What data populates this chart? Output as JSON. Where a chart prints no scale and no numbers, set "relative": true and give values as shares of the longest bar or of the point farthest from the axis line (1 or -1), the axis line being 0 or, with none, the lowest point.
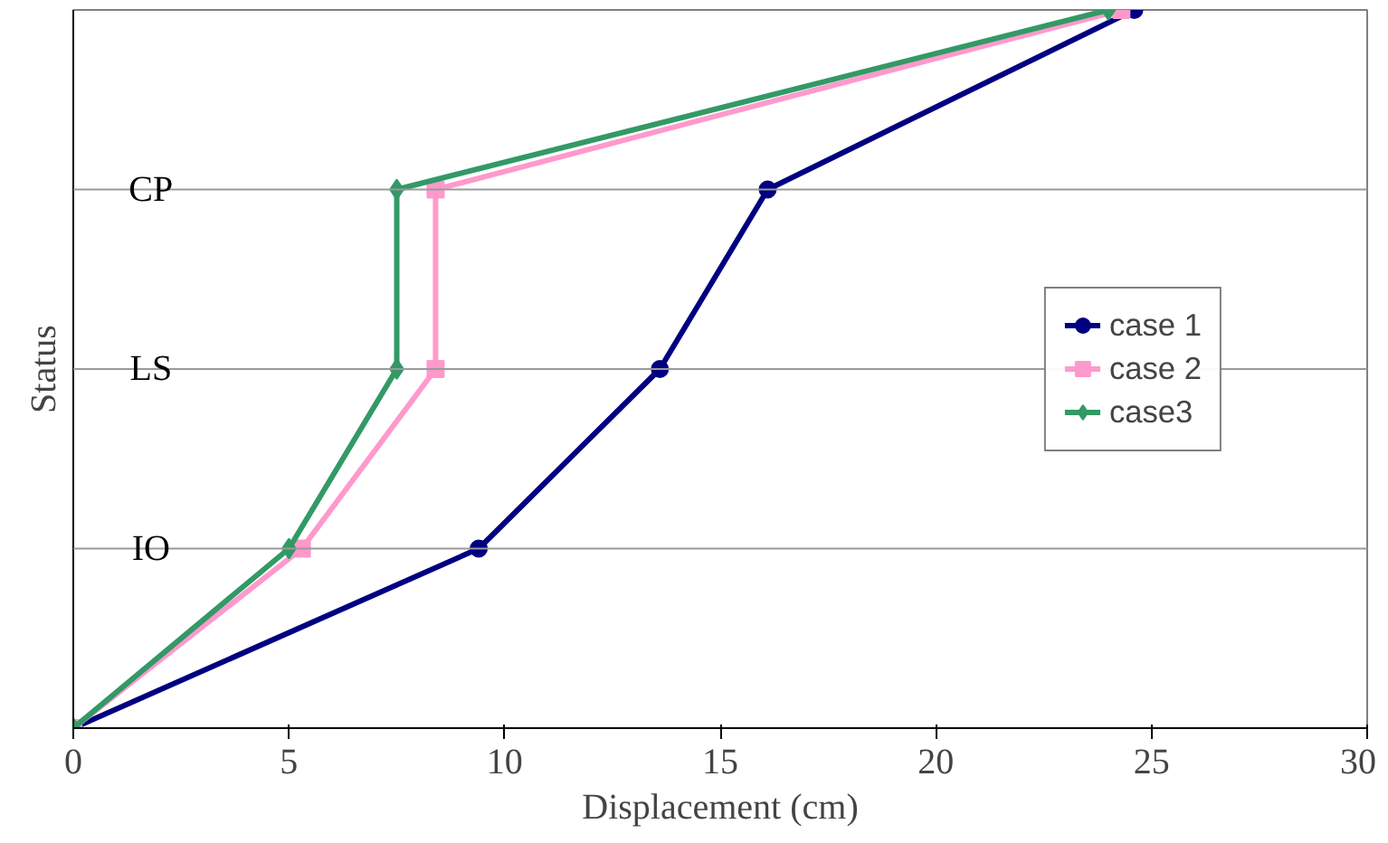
{
  "chart_data": {
    "type": "line",
    "xlabel": "Displacement (cm)",
    "ylabel": "Status",
    "xlim": [
      0,
      30
    ],
    "xticks": [
      0,
      5,
      10,
      15,
      20,
      25,
      30
    ],
    "relative": true,
    "legend": "right",
    "ref_lines": [
      {
        "axis": "y",
        "value": 0.25,
        "label": "IO",
        "color": "#999999"
      },
      {
        "axis": "y",
        "value": 0.5,
        "label": "LS",
        "color": "#999999"
      },
      {
        "axis": "y",
        "value": 0.75,
        "label": "CP",
        "color": "#999999"
      }
    ],
    "series": [
      {
        "name": "case 1",
        "color": "#000080",
        "marker": "circle",
        "x": [
          0,
          9.4,
          13.6,
          16.1,
          24.6
        ],
        "values": [
          0,
          0.25,
          0.5,
          0.75,
          1
        ]
      },
      {
        "name": "case 2",
        "color": "#ff99cc",
        "marker": "square",
        "x": [
          0,
          5.3,
          8.4,
          8.4,
          24.3
        ],
        "values": [
          0,
          0.25,
          0.5,
          0.75,
          1
        ]
      },
      {
        "name": "case3",
        "color": "#339966",
        "marker": "diamond",
        "x": [
          0,
          5,
          7.5,
          7.5,
          24
        ],
        "values": [
          0,
          0.25,
          0.5,
          0.75,
          1
        ]
      }
    ]
  }
}
